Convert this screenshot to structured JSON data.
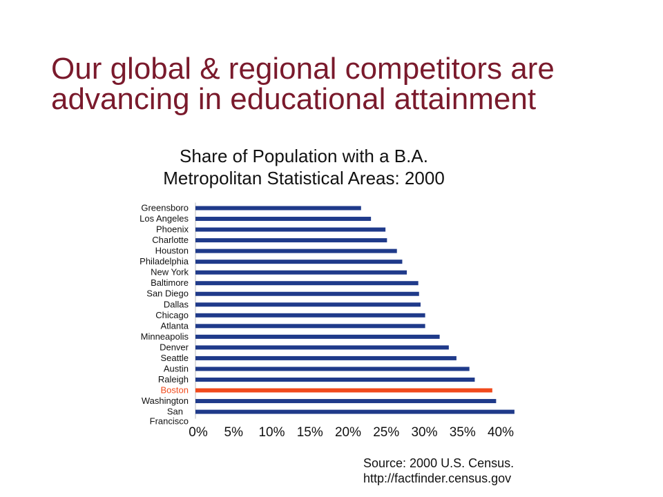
{
  "slide": {
    "title_line1": "Our global & regional competitors are",
    "title_line2": "advancing in educational attainment"
  },
  "source": {
    "line1": "Source: 2000 U.S. Census.",
    "line2": "http://factfinder.census.gov"
  },
  "colors": {
    "title": "#7a1a2c",
    "bar": "#1f3a8a",
    "highlight": "#f04a1c"
  },
  "chart_data": {
    "type": "bar",
    "orientation": "horizontal",
    "title": "Share of Population with a B.A.",
    "subtitle": "Metropolitan Statistical Areas: 2000",
    "categories": [
      "Greensboro",
      "Los Angeles",
      "Phoenix",
      "Charlotte",
      "Houston",
      "Philadelphia",
      "New York",
      "Baltimore",
      "San Diego",
      "Dallas",
      "Chicago",
      "Atlanta",
      "Minneapolis",
      "Denver",
      "Seattle",
      "Austin",
      "Raleigh",
      "Boston",
      "Washington",
      "San Francisco"
    ],
    "values": [
      21.7,
      23.0,
      24.9,
      25.1,
      26.4,
      27.1,
      27.7,
      29.2,
      29.3,
      29.5,
      30.1,
      30.1,
      32.0,
      33.2,
      34.2,
      35.9,
      36.6,
      38.9,
      39.4,
      41.8
    ],
    "highlight": [
      "Boston"
    ],
    "xlim": [
      0,
      40
    ],
    "xticks": [
      0,
      5,
      10,
      15,
      20,
      25,
      30,
      35,
      40
    ],
    "xtick_labels": [
      "0%",
      "5%",
      "10%",
      "15%",
      "20%",
      "25%",
      "30%",
      "35%",
      "40%"
    ],
    "xlabel": "",
    "ylabel": "",
    "grid": false
  }
}
